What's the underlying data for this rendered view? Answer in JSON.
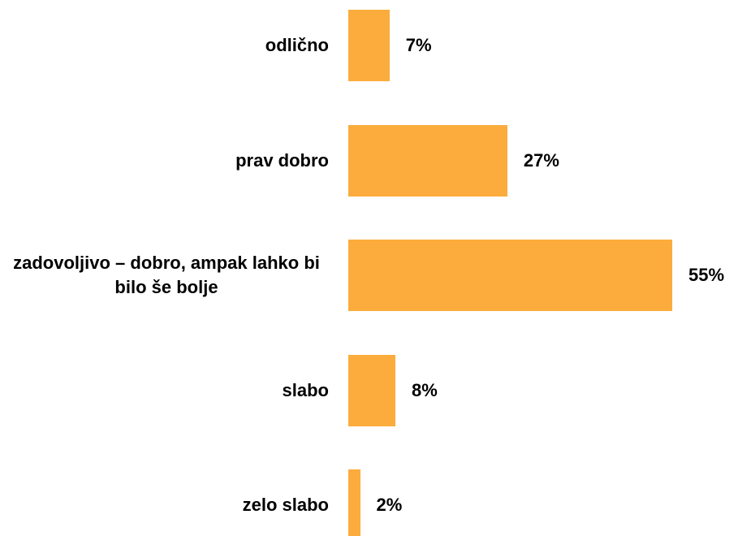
{
  "chart_data": {
    "type": "bar",
    "orientation": "horizontal",
    "categories": [
      "odlično",
      "prav dobro",
      "zadovoljivo – dobro, ampak lahko bi bilo še bolje",
      "slabo",
      "zelo slabo"
    ],
    "values": [
      7,
      27,
      55,
      8,
      2
    ],
    "value_labels": [
      "7%",
      "27%",
      "55%",
      "8%",
      "2%"
    ],
    "color": "#fbac3c"
  }
}
